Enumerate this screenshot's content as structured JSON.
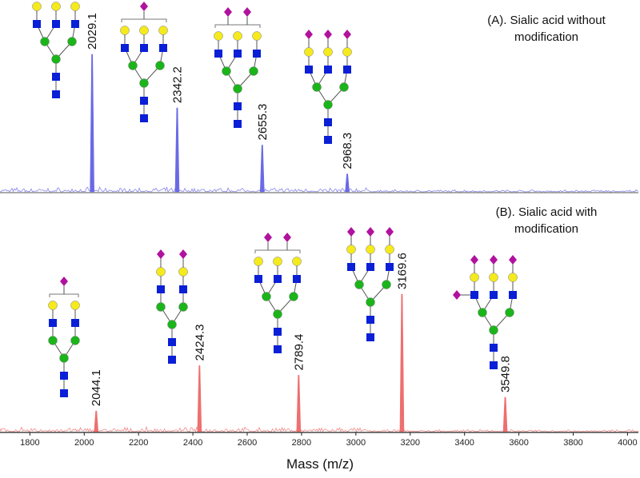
{
  "chart_data": [
    {
      "type": "spectrum",
      "title": [
        "(A). Sialic acid without",
        "modification"
      ],
      "color": "#6a6ae6",
      "xlim": [
        1690,
        4040
      ],
      "x": [
        2029.1,
        2342.2,
        2655.3,
        2968.3
      ],
      "values": [
        100,
        61,
        34,
        13
      ]
    },
    {
      "type": "spectrum",
      "title": [
        "(B). Sialic acid with",
        "modification"
      ],
      "color": "#ee6f6f",
      "xlim": [
        1690,
        4040
      ],
      "x": [
        2044.1,
        2424.3,
        2789.4,
        3169.6,
        3549.8
      ],
      "values": [
        15,
        48,
        41,
        100,
        25
      ],
      "xticks": [
        1800,
        2000,
        2200,
        2400,
        2600,
        2800,
        3000,
        3200,
        3400,
        3600,
        3800,
        4000
      ],
      "xlabel": "Mass (m/z)"
    }
  ]
}
